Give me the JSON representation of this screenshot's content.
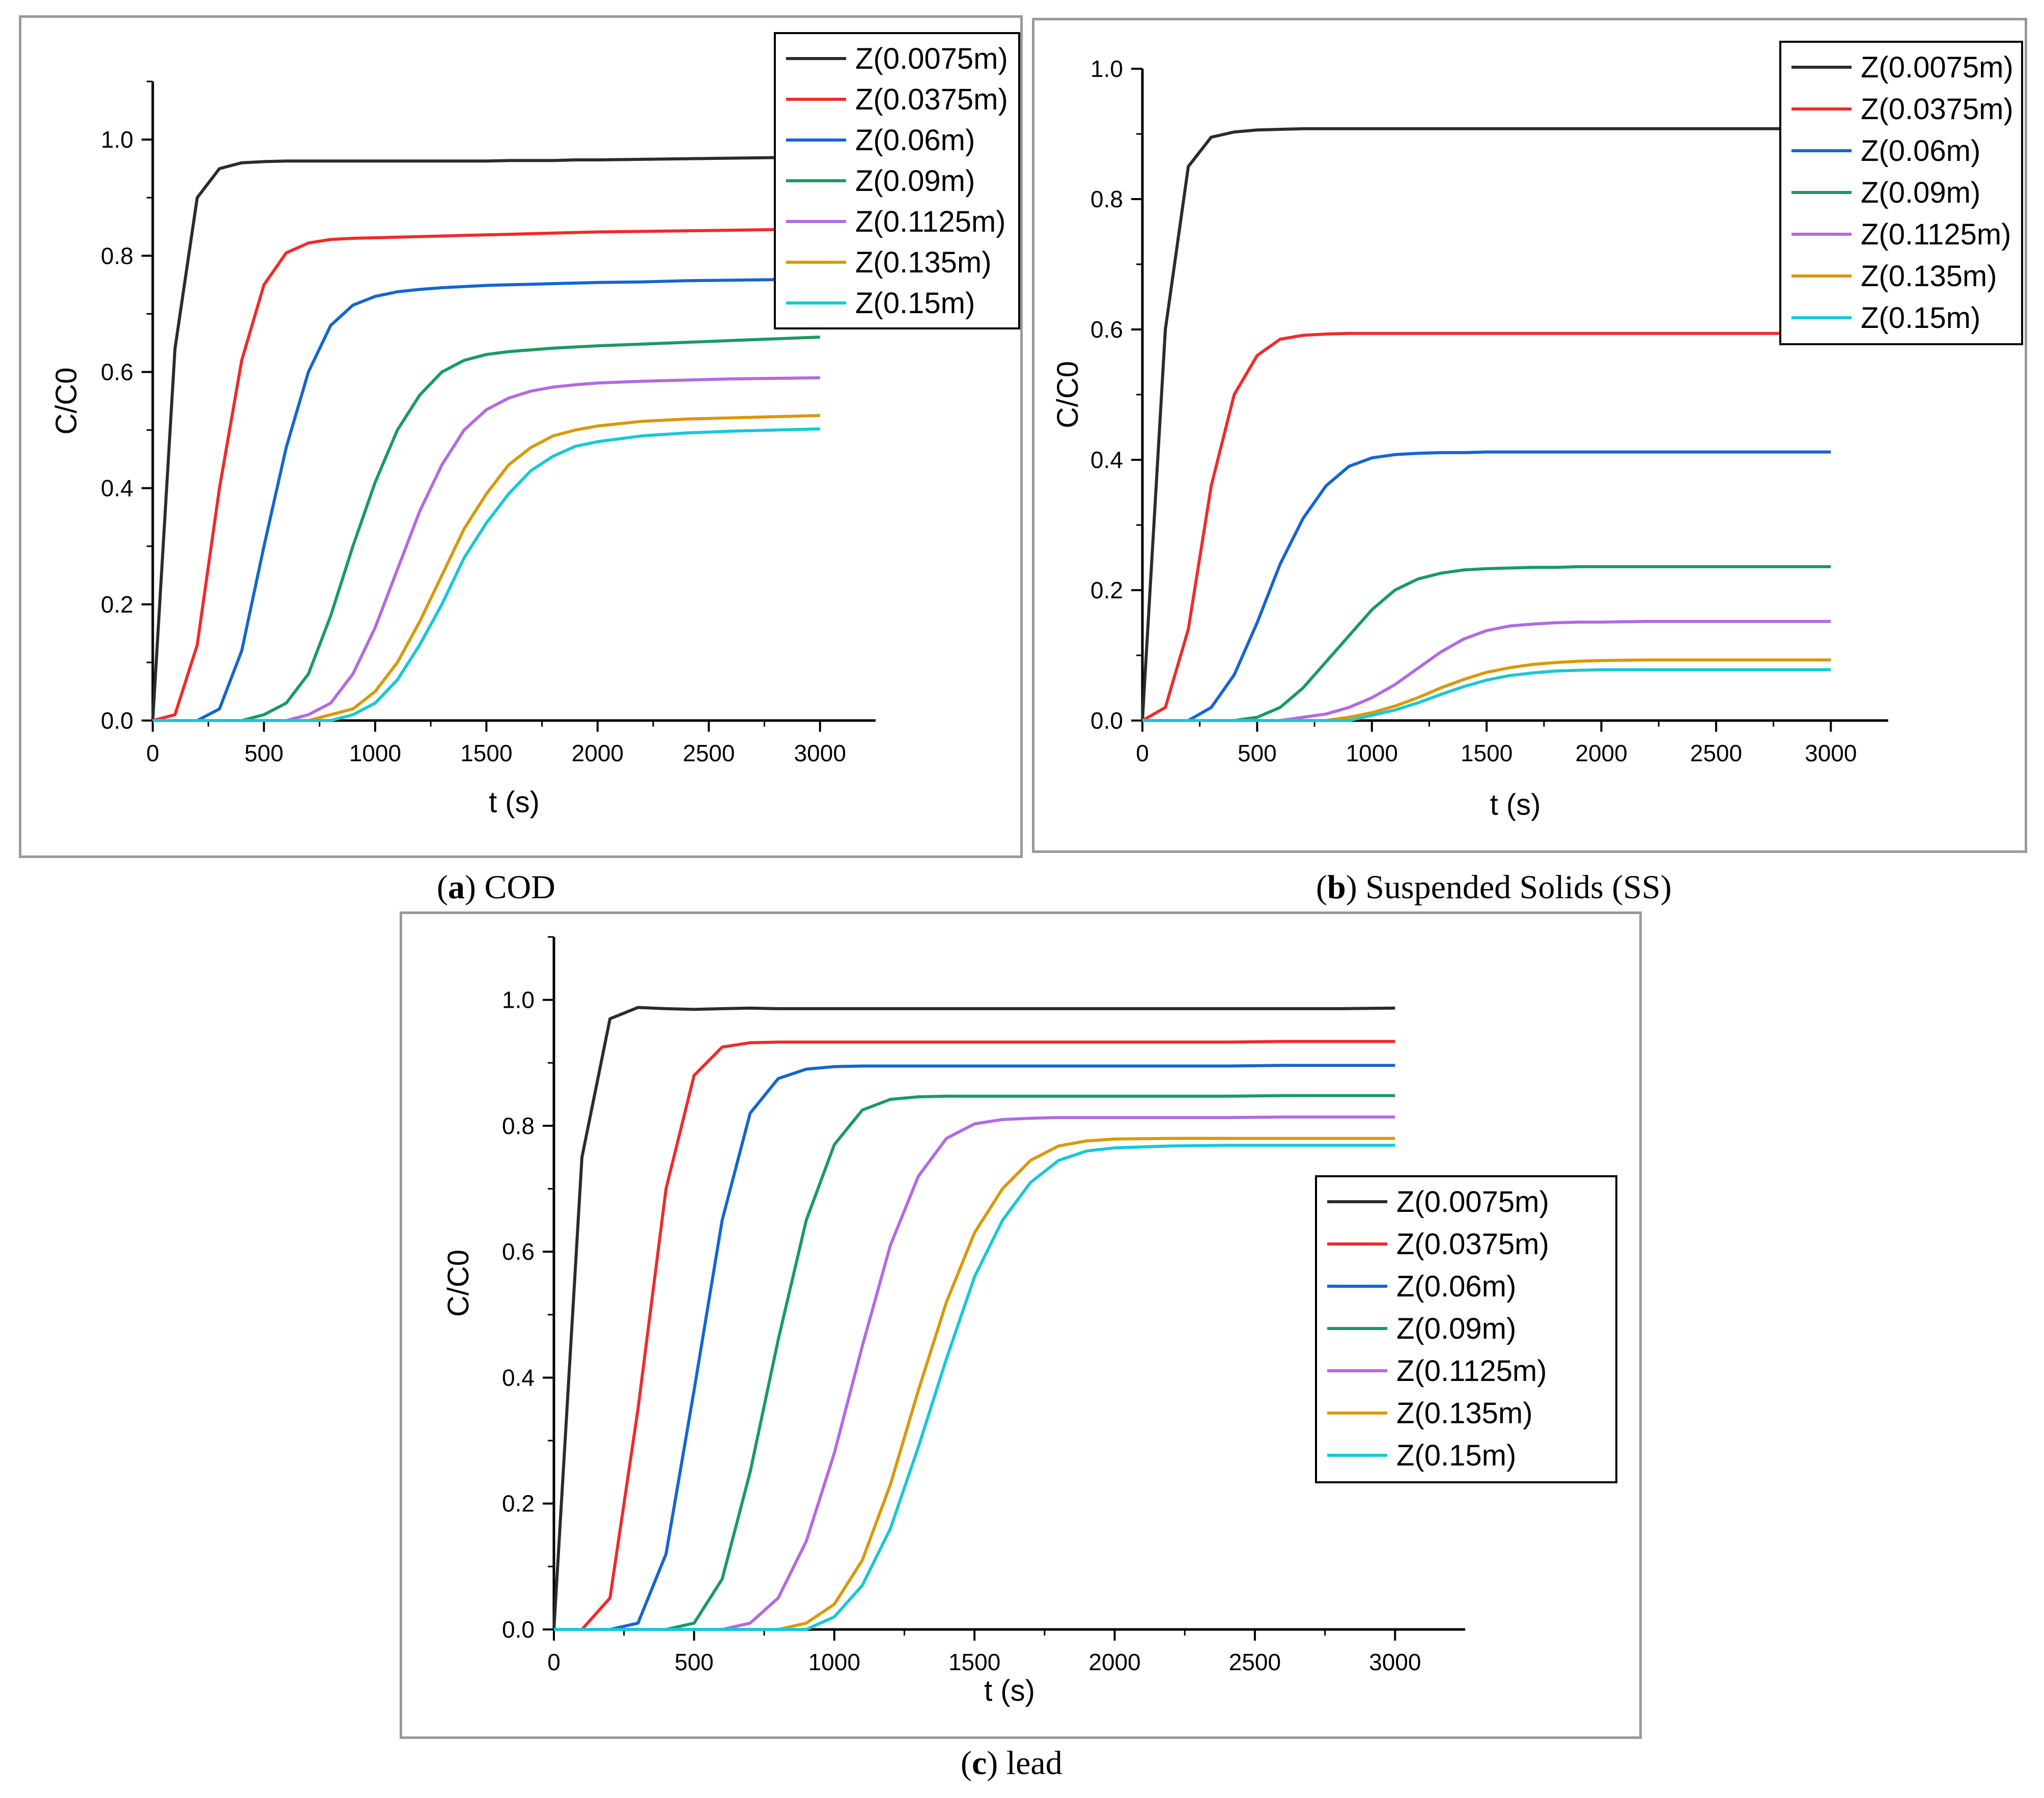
{
  "captions": [
    {
      "letter": "a",
      "text": " COD"
    },
    {
      "letter": "b",
      "text": " Suspended Solids (SS)"
    },
    {
      "letter": "c",
      "text": " lead"
    }
  ],
  "legend_labels": [
    "Z(0.0075m)",
    "Z(0.0375m)",
    "Z(0.06m)",
    "Z(0.09m)",
    "Z(0.1125m)",
    "Z(0.135m)",
    "Z(0.15m)"
  ],
  "series_colors": [
    "#2b2b2b",
    "#ef2b2b",
    "#1565d0",
    "#1a9a62",
    "#b36ae2",
    "#d9990a",
    "#18c8d6"
  ],
  "chart_data": [
    {
      "type": "line",
      "title": "(a) COD",
      "xlabel": "t (s)",
      "ylabel": "C/C0",
      "xlim": [
        0,
        3250
      ],
      "ylim": [
        0,
        1.1
      ],
      "xticks": [
        0,
        500,
        1000,
        1500,
        2000,
        2500,
        3000
      ],
      "yticks": [
        0.0,
        0.2,
        0.4,
        0.6,
        0.8,
        1.0
      ],
      "legend_position": "top-right",
      "x": [
        0,
        100,
        200,
        300,
        400,
        500,
        600,
        700,
        800,
        900,
        1000,
        1100,
        1200,
        1300,
        1400,
        1500,
        1600,
        1700,
        1800,
        1900,
        2000,
        2200,
        2400,
        2600,
        2800,
        3000
      ],
      "series": [
        {
          "name": "Z(0.0075m)",
          "values": [
            0,
            0.64,
            0.9,
            0.95,
            0.96,
            0.962,
            0.963,
            0.963,
            0.963,
            0.963,
            0.963,
            0.963,
            0.963,
            0.963,
            0.963,
            0.963,
            0.964,
            0.964,
            0.964,
            0.965,
            0.965,
            0.966,
            0.967,
            0.968,
            0.969,
            0.97
          ]
        },
        {
          "name": "Z(0.0375m)",
          "values": [
            0,
            0.01,
            0.13,
            0.4,
            0.62,
            0.75,
            0.805,
            0.822,
            0.828,
            0.83,
            0.831,
            0.832,
            0.833,
            0.834,
            0.835,
            0.836,
            0.837,
            0.838,
            0.839,
            0.84,
            0.841,
            0.842,
            0.843,
            0.844,
            0.845,
            0.846
          ]
        },
        {
          "name": "Z(0.06m)",
          "values": [
            0,
            0,
            0,
            0.02,
            0.12,
            0.3,
            0.47,
            0.6,
            0.68,
            0.715,
            0.73,
            0.738,
            0.742,
            0.745,
            0.747,
            0.749,
            0.75,
            0.751,
            0.752,
            0.753,
            0.754,
            0.755,
            0.757,
            0.758,
            0.759,
            0.76
          ]
        },
        {
          "name": "Z(0.09m)",
          "values": [
            0,
            0,
            0,
            0,
            0,
            0.01,
            0.03,
            0.08,
            0.18,
            0.3,
            0.41,
            0.5,
            0.56,
            0.6,
            0.62,
            0.63,
            0.635,
            0.638,
            0.641,
            0.643,
            0.645,
            0.648,
            0.651,
            0.654,
            0.657,
            0.66
          ]
        },
        {
          "name": "Z(0.1125m)",
          "values": [
            0,
            0,
            0,
            0,
            0,
            0,
            0,
            0.01,
            0.03,
            0.08,
            0.16,
            0.26,
            0.36,
            0.44,
            0.5,
            0.535,
            0.555,
            0.567,
            0.574,
            0.578,
            0.581,
            0.584,
            0.586,
            0.588,
            0.589,
            0.59
          ]
        },
        {
          "name": "Z(0.135m)",
          "values": [
            0,
            0,
            0,
            0,
            0,
            0,
            0,
            0,
            0.01,
            0.02,
            0.05,
            0.1,
            0.17,
            0.25,
            0.33,
            0.39,
            0.44,
            0.47,
            0.49,
            0.5,
            0.507,
            0.515,
            0.519,
            0.521,
            0.523,
            0.525
          ]
        },
        {
          "name": "Z(0.15m)",
          "values": [
            0,
            0,
            0,
            0,
            0,
            0,
            0,
            0,
            0,
            0.01,
            0.03,
            0.07,
            0.13,
            0.2,
            0.28,
            0.34,
            0.39,
            0.43,
            0.455,
            0.472,
            0.48,
            0.49,
            0.495,
            0.498,
            0.5,
            0.502
          ]
        }
      ]
    },
    {
      "type": "line",
      "title": "(b) Suspended Solids (SS)",
      "xlabel": "t (s)",
      "ylabel": "C/C0",
      "xlim": [
        0,
        3250
      ],
      "ylim": [
        0,
        1.0
      ],
      "xticks": [
        0,
        500,
        1000,
        1500,
        2000,
        2500,
        3000
      ],
      "yticks": [
        0.0,
        0.2,
        0.4,
        0.6,
        0.8,
        1.0
      ],
      "legend_position": "top-right",
      "x": [
        0,
        100,
        200,
        300,
        400,
        500,
        600,
        700,
        800,
        900,
        1000,
        1100,
        1200,
        1300,
        1400,
        1500,
        1600,
        1700,
        1800,
        1900,
        2000,
        2200,
        2400,
        2600,
        2800,
        3000
      ],
      "series": [
        {
          "name": "Z(0.0075m)",
          "values": [
            0,
            0.6,
            0.85,
            0.895,
            0.903,
            0.906,
            0.907,
            0.908,
            0.908,
            0.908,
            0.908,
            0.908,
            0.908,
            0.908,
            0.908,
            0.908,
            0.908,
            0.908,
            0.908,
            0.908,
            0.908,
            0.908,
            0.908,
            0.908,
            0.908,
            0.908
          ]
        },
        {
          "name": "Z(0.0375m)",
          "values": [
            0,
            0.02,
            0.14,
            0.36,
            0.5,
            0.56,
            0.585,
            0.591,
            0.593,
            0.594,
            0.594,
            0.594,
            0.594,
            0.594,
            0.594,
            0.594,
            0.594,
            0.594,
            0.594,
            0.594,
            0.594,
            0.594,
            0.594,
            0.594,
            0.594,
            0.594
          ]
        },
        {
          "name": "Z(0.06m)",
          "values": [
            0,
            0,
            0,
            0.02,
            0.07,
            0.15,
            0.24,
            0.31,
            0.36,
            0.39,
            0.403,
            0.408,
            0.41,
            0.411,
            0.411,
            0.412,
            0.412,
            0.412,
            0.412,
            0.412,
            0.412,
            0.412,
            0.412,
            0.412,
            0.412,
            0.412
          ]
        },
        {
          "name": "Z(0.09m)",
          "values": [
            0,
            0,
            0,
            0,
            0,
            0.005,
            0.02,
            0.05,
            0.09,
            0.13,
            0.17,
            0.2,
            0.217,
            0.226,
            0.231,
            0.233,
            0.234,
            0.235,
            0.235,
            0.236,
            0.236,
            0.236,
            0.236,
            0.236,
            0.236,
            0.236
          ]
        },
        {
          "name": "Z(0.1125m)",
          "values": [
            0,
            0,
            0,
            0,
            0,
            0,
            0,
            0.005,
            0.01,
            0.02,
            0.035,
            0.055,
            0.08,
            0.105,
            0.125,
            0.138,
            0.145,
            0.148,
            0.15,
            0.151,
            0.151,
            0.152,
            0.152,
            0.152,
            0.152,
            0.152
          ]
        },
        {
          "name": "Z(0.135m)",
          "values": [
            0,
            0,
            0,
            0,
            0,
            0,
            0,
            0,
            0,
            0.005,
            0.012,
            0.022,
            0.035,
            0.05,
            0.063,
            0.074,
            0.081,
            0.086,
            0.089,
            0.091,
            0.092,
            0.093,
            0.093,
            0.093,
            0.093,
            0.093
          ]
        },
        {
          "name": "Z(0.15m)",
          "values": [
            0,
            0,
            0,
            0,
            0,
            0,
            0,
            0,
            0,
            0,
            0.008,
            0.016,
            0.027,
            0.04,
            0.052,
            0.062,
            0.069,
            0.073,
            0.076,
            0.077,
            0.078,
            0.078,
            0.078,
            0.078,
            0.078,
            0.078
          ]
        }
      ]
    },
    {
      "type": "line",
      "title": "(c) lead",
      "xlabel": "t (s)",
      "ylabel": "C/C0",
      "xlim": [
        0,
        3250
      ],
      "ylim": [
        0,
        1.1
      ],
      "xticks": [
        0,
        500,
        1000,
        1500,
        2000,
        2500,
        3000
      ],
      "yticks": [
        0.0,
        0.2,
        0.4,
        0.6,
        0.8,
        1.0
      ],
      "legend_position": "center-right",
      "x": [
        0,
        100,
        200,
        300,
        400,
        500,
        600,
        700,
        800,
        900,
        1000,
        1100,
        1200,
        1300,
        1400,
        1500,
        1600,
        1700,
        1800,
        1900,
        2000,
        2200,
        2400,
        2600,
        2800,
        3000
      ],
      "series": [
        {
          "name": "Z(0.0075m)",
          "values": [
            0,
            0.75,
            0.97,
            0.988,
            0.986,
            0.985,
            0.986,
            0.987,
            0.986,
            0.986,
            0.986,
            0.986,
            0.986,
            0.986,
            0.986,
            0.986,
            0.986,
            0.986,
            0.986,
            0.986,
            0.986,
            0.986,
            0.986,
            0.986,
            0.986,
            0.987
          ]
        },
        {
          "name": "Z(0.0375m)",
          "values": [
            0,
            0,
            0.05,
            0.35,
            0.7,
            0.88,
            0.925,
            0.932,
            0.933,
            0.933,
            0.933,
            0.933,
            0.933,
            0.933,
            0.933,
            0.933,
            0.933,
            0.933,
            0.933,
            0.933,
            0.933,
            0.933,
            0.933,
            0.934,
            0.934,
            0.934
          ]
        },
        {
          "name": "Z(0.06m)",
          "values": [
            0,
            0,
            0,
            0.01,
            0.12,
            0.38,
            0.65,
            0.82,
            0.875,
            0.89,
            0.894,
            0.895,
            0.895,
            0.895,
            0.895,
            0.895,
            0.895,
            0.895,
            0.895,
            0.895,
            0.895,
            0.895,
            0.895,
            0.896,
            0.896,
            0.896
          ]
        },
        {
          "name": "Z(0.09m)",
          "values": [
            0,
            0,
            0,
            0,
            0,
            0.01,
            0.08,
            0.25,
            0.46,
            0.65,
            0.77,
            0.825,
            0.842,
            0.846,
            0.847,
            0.847,
            0.847,
            0.847,
            0.847,
            0.847,
            0.847,
            0.847,
            0.847,
            0.848,
            0.848,
            0.848
          ]
        },
        {
          "name": "Z(0.1125m)",
          "values": [
            0,
            0,
            0,
            0,
            0,
            0,
            0,
            0.01,
            0.05,
            0.14,
            0.28,
            0.45,
            0.61,
            0.72,
            0.78,
            0.803,
            0.81,
            0.812,
            0.813,
            0.813,
            0.813,
            0.813,
            0.813,
            0.814,
            0.814,
            0.814
          ]
        },
        {
          "name": "Z(0.135m)",
          "values": [
            0,
            0,
            0,
            0,
            0,
            0,
            0,
            0,
            0,
            0.01,
            0.04,
            0.11,
            0.23,
            0.38,
            0.52,
            0.63,
            0.7,
            0.745,
            0.768,
            0.776,
            0.779,
            0.78,
            0.78,
            0.78,
            0.78,
            0.78
          ]
        },
        {
          "name": "Z(0.15m)",
          "values": [
            0,
            0,
            0,
            0,
            0,
            0,
            0,
            0,
            0,
            0,
            0.02,
            0.07,
            0.16,
            0.29,
            0.43,
            0.56,
            0.65,
            0.71,
            0.745,
            0.76,
            0.765,
            0.768,
            0.769,
            0.769,
            0.769,
            0.769
          ]
        }
      ]
    }
  ]
}
